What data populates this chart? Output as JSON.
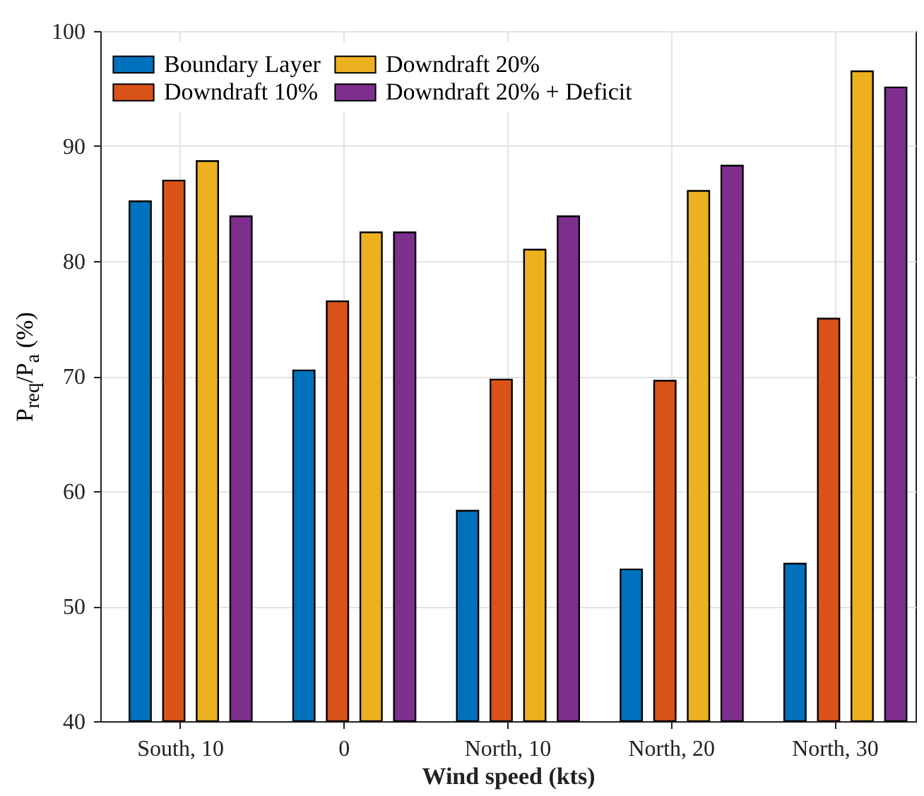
{
  "chart_data": {
    "type": "bar",
    "xlabel": "Wind speed (kts)",
    "ylabel": "P$_{req}$/P$_{a}$ (%)",
    "categories": [
      "South, 10",
      "0",
      "North, 10",
      "North, 20",
      "North, 30"
    ],
    "series": [
      {
        "name": "Boundary Layer",
        "color": "#0072bd",
        "values": [
          85.2,
          70.5,
          58.3,
          53.2,
          53.7
        ]
      },
      {
        "name": "Downdraft 10%",
        "color": "#d95319",
        "values": [
          87.0,
          76.5,
          69.7,
          69.6,
          75.0
        ]
      },
      {
        "name": "Downdraft 20%",
        "color": "#edb120",
        "values": [
          88.7,
          82.5,
          81.0,
          86.1,
          96.5
        ]
      },
      {
        "name": "Downdraft 20% + Deficit",
        "color": "#7e2f8e",
        "values": [
          83.9,
          82.5,
          83.9,
          88.3,
          95.1
        ]
      }
    ],
    "ylim": [
      40,
      100
    ],
    "yticks": [
      40,
      50,
      60,
      70,
      80,
      90,
      100
    ],
    "grid": true,
    "legend": "top left"
  }
}
